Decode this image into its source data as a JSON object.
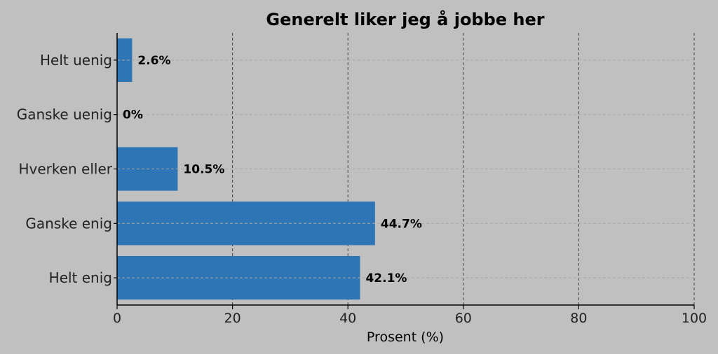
{
  "chart_data": {
    "type": "bar",
    "orientation": "horizontal",
    "title": "Generelt liker jeg å jobbe her",
    "xlabel": "Prosent (%)",
    "ylabel": "",
    "categories": [
      "Helt uenig",
      "Ganske uenig",
      "Hverken eller",
      "Ganske enig",
      "Helt enig"
    ],
    "values": [
      2.6,
      0,
      10.5,
      44.7,
      42.1
    ],
    "value_labels": [
      "2.6%",
      "0%",
      "10.5%",
      "44.7%",
      "42.1%"
    ],
    "xlim": [
      0,
      100
    ],
    "xticks": [
      0,
      20,
      40,
      60,
      80,
      100
    ],
    "xtick_labels": [
      "0",
      "20",
      "40",
      "60",
      "80",
      "100"
    ],
    "grid": true,
    "colors": {
      "background": "#c0c0c0",
      "bar": "#2e75b6",
      "grid_major": "#444444",
      "grid_minor": "#a8a8a8"
    }
  }
}
